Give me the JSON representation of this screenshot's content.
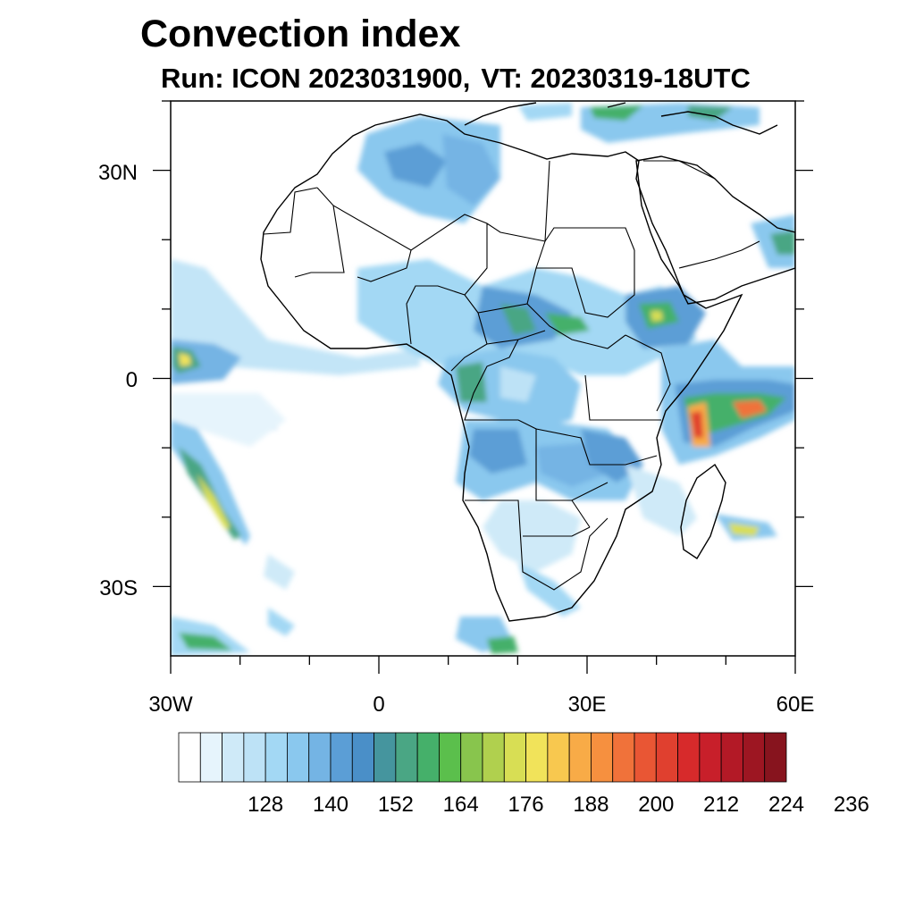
{
  "title": "Convection index",
  "subtitle": {
    "run_label": "Run: ICON 2023031900,",
    "vt_label": "VT: 20230319-18UTC"
  },
  "map": {
    "region": "Africa",
    "lon_range": [
      -30,
      60
    ],
    "lat_range": [
      -40,
      40
    ],
    "lat_ticks": [
      {
        "value": 30,
        "label": "30N"
      },
      {
        "value": 0,
        "label": "0"
      },
      {
        "value": -30,
        "label": "30S"
      }
    ],
    "lon_ticks": [
      {
        "value": -30,
        "label": "30W"
      },
      {
        "value": 0,
        "label": "0"
      },
      {
        "value": 30,
        "label": "30E"
      },
      {
        "value": 60,
        "label": "60E"
      }
    ],
    "colors": {
      "land_border": "#000000",
      "frame": "#000000"
    }
  },
  "colorbar": {
    "levels_start": 116,
    "level_step": 4,
    "labels": [
      "128",
      "140",
      "152",
      "164",
      "176",
      "188",
      "200",
      "212",
      "224",
      "236"
    ],
    "colors": [
      "#ffffff",
      "#e6f4fc",
      "#cfeaf8",
      "#bde2f6",
      "#a3d8f4",
      "#8ac8ee",
      "#74b4e4",
      "#5b9ed6",
      "#4a8fc8",
      "#45959e",
      "#4aa684",
      "#45b06a",
      "#5bbf4c",
      "#88c54d",
      "#b0d04e",
      "#d8de54",
      "#f1e35a",
      "#f8c84f",
      "#f8ab47",
      "#f6903f",
      "#f0723a",
      "#e95634",
      "#e0402f",
      "#d72a2b",
      "#c81f2a",
      "#b31926",
      "#9d1622",
      "#87141e"
    ]
  }
}
